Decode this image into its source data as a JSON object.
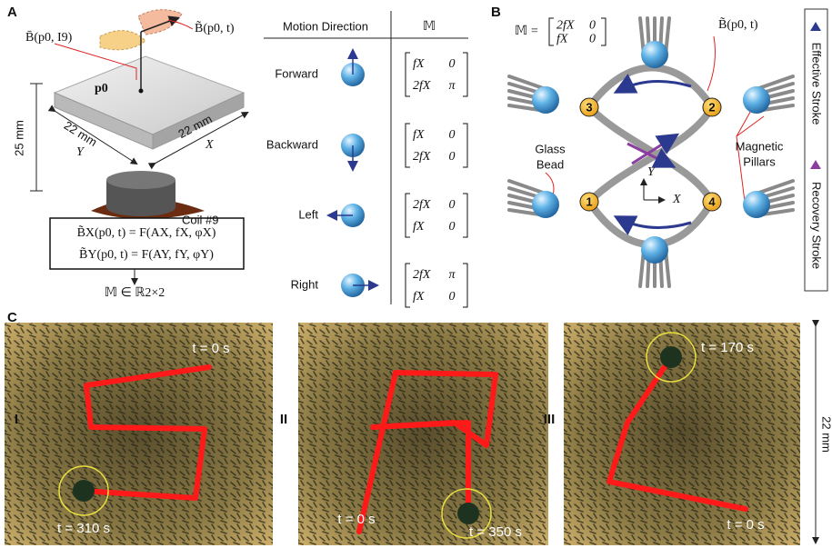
{
  "panel_a": {
    "label": "A",
    "field_static": "B̄(p0, I9)",
    "field_dynamic": "B̃(p0, t)",
    "point": "p0",
    "width_label": "22 mm",
    "depth_label": "22 mm",
    "height_label": "25 mm",
    "axis_y": "Y",
    "axis_x": "X",
    "coil": "Coil #9",
    "equations": [
      "B̃X(p0, t) = F(AX, fX, φX)",
      "B̃Y(p0, t) = F(AY, fY, φY)"
    ],
    "output": "𝕄 ∈ ℝ2×2"
  },
  "table": {
    "headers": [
      "Motion Direction",
      "𝕄"
    ],
    "rows": [
      {
        "direction": "Forward",
        "matrix": [
          [
            "fX",
            "0"
          ],
          [
            "2fX",
            "π"
          ]
        ]
      },
      {
        "direction": "Backward",
        "matrix": [
          [
            "fX",
            "0"
          ],
          [
            "2fX",
            "0"
          ]
        ]
      },
      {
        "direction": "Left",
        "matrix": [
          [
            "2fX",
            "0"
          ],
          [
            "fX",
            "0"
          ]
        ]
      },
      {
        "direction": "Right",
        "matrix": [
          [
            "2fX",
            "π"
          ],
          [
            "fX",
            "0"
          ]
        ]
      }
    ]
  },
  "panel_b": {
    "label": "B",
    "matrix_label": "𝕄 =",
    "matrix": [
      [
        "2fX",
        "0"
      ],
      [
        "fX",
        "0"
      ]
    ],
    "field": "B̃(p0, t)",
    "nodes": [
      "1",
      "2",
      "3",
      "4"
    ],
    "glass_bead": [
      "Glass",
      "Bead"
    ],
    "pillars": [
      "Magnetic",
      "Pillars"
    ],
    "axis_y": "Y",
    "axis_x": "X",
    "legend": [
      "Effective Stroke",
      "Recovery Stroke"
    ]
  },
  "panel_c": {
    "label": "C",
    "trials": [
      {
        "label": "I",
        "start": "t = 0 s",
        "end": "t = 310 s"
      },
      {
        "label": "II",
        "start": "t = 0 s",
        "end": "t = 350 s"
      },
      {
        "label": "III",
        "start": "t = 0 s",
        "end": "t = 170 s"
      }
    ],
    "scale": "22 mm"
  }
}
